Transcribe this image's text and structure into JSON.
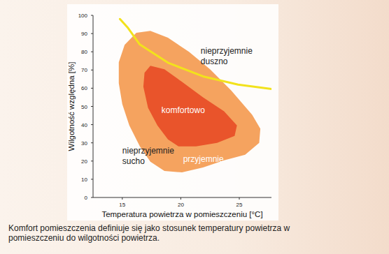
{
  "chart_data": {
    "type": "region",
    "x_label": "Temperatura powietrza w pomieszczeniu [°C]",
    "y_label": "Wilgotność względna [%]",
    "xlim": [
      12.5,
      27.75
    ],
    "xticks": [
      15,
      20,
      25
    ],
    "ylim": [
      0,
      100
    ],
    "yticks": [
      0,
      10,
      20,
      30,
      40,
      50,
      60,
      70,
      80,
      90,
      100
    ],
    "grid": false,
    "series": [
      {
        "name": "przyjemnie",
        "type": "area",
        "color": "#f5a35f",
        "x": [
          16.2,
          17.4,
          18.9,
          20.7,
          22.5,
          24.3,
          26.1,
          26.8,
          26.7,
          25.5,
          23.7,
          21.9,
          20.1,
          18.6,
          17.4,
          16.5,
          15.6,
          15.0,
          14.7,
          14.7,
          15.2
        ],
        "values": [
          90.4,
          91.5,
          87.7,
          80.0,
          70.4,
          58.8,
          45.4,
          37.7,
          30.0,
          23.5,
          20.4,
          16.5,
          13.8,
          14.6,
          19.6,
          28.1,
          39.6,
          51.2,
          62.7,
          74.2,
          83.8
        ]
      },
      {
        "name": "komfortowo",
        "type": "area",
        "color": "#e9542b",
        "x": [
          17.4,
          18.6,
          20.1,
          21.9,
          23.7,
          24.8,
          24.6,
          23.1,
          21.3,
          19.8,
          18.9,
          18.0,
          17.2,
          16.8,
          16.9
        ],
        "values": [
          72.3,
          70.4,
          63.5,
          55.0,
          47.3,
          39.6,
          33.8,
          30.0,
          28.1,
          28.1,
          31.9,
          39.6,
          49.2,
          60.8,
          68.5
        ]
      },
      {
        "type": "line",
        "color": "#f2e21c",
        "x": [
          14.8,
          15.5,
          16.5,
          18.9,
          21.9,
          24.9,
          27.75
        ],
        "values": [
          98,
          93,
          84,
          74,
          66.5,
          62,
          59.6
        ]
      }
    ],
    "annotations": [
      {
        "text": "nieprzyjemnie duszno",
        "x": 21.7,
        "y": 79
      },
      {
        "text": "nieprzyjemnie sucho",
        "x": 15.0,
        "y": 24
      }
    ],
    "caption": "Komfort pomieszczenia definiuje się jako stosunek temperatury powietrza w pomieszczeniu do wilgotności powietrza."
  }
}
